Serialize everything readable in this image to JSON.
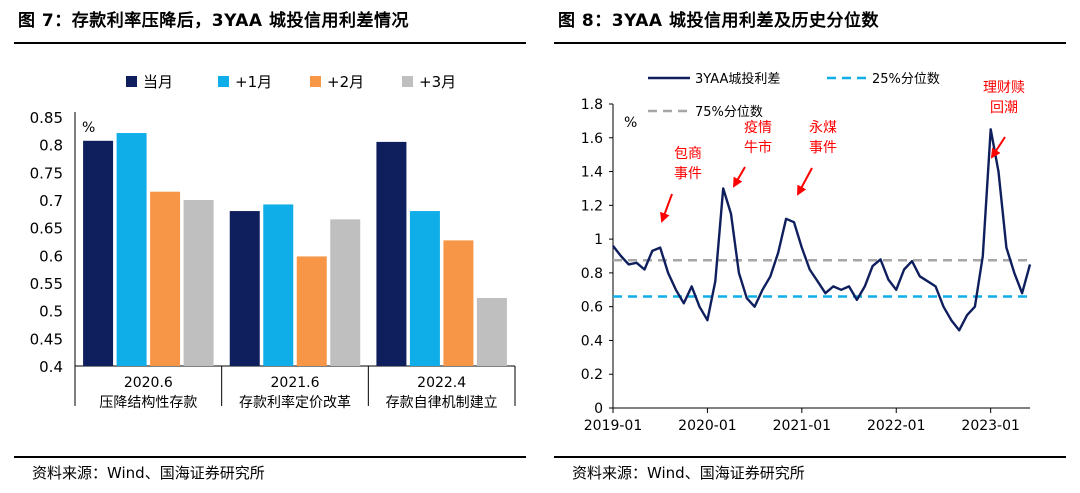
{
  "figures": [
    {
      "title": "图 7：存款利率压降后，3YAA 城投信用利差情况",
      "source": "资料来源：Wind、国海证券研究所"
    },
    {
      "title": "图 8：3YAA 城投信用利差及历史分位数",
      "source": "资料来源：Wind、国海证券研究所"
    }
  ],
  "chart_data": [
    {
      "type": "bar",
      "unit_label": "%",
      "categories": [
        "2020.6",
        "2021.6",
        "2022.4"
      ],
      "category_sublabels": [
        "压降结构性存款",
        "存款利率定价改革",
        "存款自律机制建立"
      ],
      "series": [
        {
          "name": "当月",
          "color": "#0f1f5e",
          "values": [
            0.807,
            0.68,
            0.805
          ]
        },
        {
          "name": "+1月",
          "color": "#10aee8",
          "values": [
            0.821,
            0.692,
            0.68
          ]
        },
        {
          "name": "+2月",
          "color": "#f79646",
          "values": [
            0.715,
            0.598,
            0.627
          ]
        },
        {
          "name": "+3月",
          "color": "#bfbfbf",
          "values": [
            0.7,
            0.665,
            0.523
          ]
        }
      ],
      "ylim": [
        0.4,
        0.85
      ],
      "yticks": [
        "0.4",
        "0.45",
        "0.5",
        "0.55",
        "0.6",
        "0.65",
        "0.7",
        "0.75",
        "0.8",
        "0.85"
      ],
      "legend_position": "top"
    },
    {
      "type": "line",
      "unit_label": "%",
      "ylim": [
        0,
        1.8
      ],
      "yticks": [
        "0",
        "0.2",
        "0.4",
        "0.6",
        "0.8",
        "1",
        "1.2",
        "1.4",
        "1.6",
        "1.8"
      ],
      "xticks": [
        "2019-01",
        "2020-01",
        "2021-01",
        "2022-01",
        "2023-01"
      ],
      "legend_position": "top",
      "series": [
        {
          "name": "3YAA城投利差",
          "color": "#0f1f5e",
          "style": "solid",
          "x": [
            "2019-01",
            "2019-02",
            "2019-03",
            "2019-04",
            "2019-05",
            "2019-06",
            "2019-07",
            "2019-08",
            "2019-09",
            "2019-10",
            "2019-11",
            "2019-12",
            "2020-01",
            "2020-02",
            "2020-03",
            "2020-04",
            "2020-05",
            "2020-06",
            "2020-07",
            "2020-08",
            "2020-09",
            "2020-10",
            "2020-11",
            "2020-12",
            "2021-01",
            "2021-02",
            "2021-03",
            "2021-04",
            "2021-05",
            "2021-06",
            "2021-07",
            "2021-08",
            "2021-09",
            "2021-10",
            "2021-11",
            "2021-12",
            "2022-01",
            "2022-02",
            "2022-03",
            "2022-04",
            "2022-05",
            "2022-06",
            "2022-07",
            "2022-08",
            "2022-09",
            "2022-10",
            "2022-11",
            "2022-12",
            "2023-01",
            "2023-02",
            "2023-03",
            "2023-04",
            "2023-05",
            "2023-06"
          ],
          "values": [
            0.96,
            0.9,
            0.85,
            0.86,
            0.82,
            0.93,
            0.95,
            0.8,
            0.7,
            0.62,
            0.72,
            0.6,
            0.52,
            0.75,
            1.3,
            1.15,
            0.8,
            0.65,
            0.6,
            0.7,
            0.78,
            0.92,
            1.12,
            1.1,
            0.95,
            0.82,
            0.75,
            0.68,
            0.72,
            0.7,
            0.72,
            0.64,
            0.72,
            0.84,
            0.88,
            0.76,
            0.7,
            0.82,
            0.87,
            0.78,
            0.75,
            0.72,
            0.6,
            0.52,
            0.46,
            0.55,
            0.6,
            0.9,
            1.65,
            1.4,
            0.95,
            0.8,
            0.68,
            0.85
          ]
        },
        {
          "name": "25%分位数",
          "color": "#10aee8",
          "style": "dashed",
          "constant": 0.66
        },
        {
          "name": "75%分位数",
          "color": "#a6a6a6",
          "style": "dashed",
          "constant": 0.875
        }
      ],
      "annotations": [
        {
          "text": [
            "包商",
            "事件"
          ],
          "x": "2019-05",
          "y": 0.92,
          "color": "#ff0000"
        },
        {
          "text": [
            "疫情",
            "牛市"
          ],
          "x": "2020-03",
          "y": 1.3,
          "color": "#ff0000"
        },
        {
          "text": [
            "永煤",
            "事件"
          ],
          "x": "2020-12",
          "y": 1.12,
          "color": "#ff0000"
        },
        {
          "text": [
            "理财赎",
            "回潮"
          ],
          "x": "2023-01",
          "y": 1.45,
          "color": "#ff0000"
        }
      ]
    }
  ]
}
